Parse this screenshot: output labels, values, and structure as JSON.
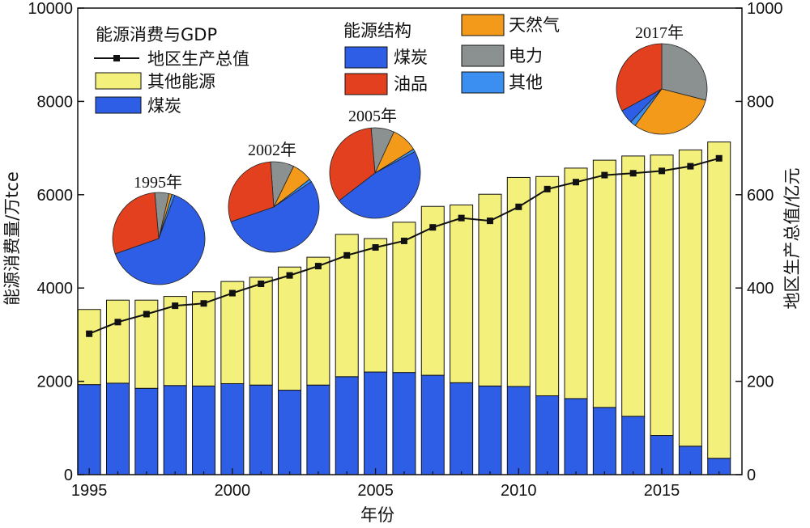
{
  "chart_data": {
    "type": "bar",
    "stacked": true,
    "x": [
      1995,
      1996,
      1997,
      1998,
      1999,
      2000,
      2001,
      2002,
      2003,
      2004,
      2005,
      2006,
      2007,
      2008,
      2009,
      2010,
      2011,
      2012,
      2013,
      2014,
      2015,
      2016,
      2017
    ],
    "series": [
      {
        "name": "煤炭",
        "color": "#2f5ee6",
        "values": [
          1930,
          1960,
          1850,
          1910,
          1900,
          1950,
          1920,
          1810,
          1920,
          2100,
          2200,
          2190,
          2130,
          1970,
          1900,
          1890,
          1690,
          1630,
          1440,
          1250,
          840,
          610,
          350
        ]
      },
      {
        "name": "其他能源",
        "color": "#f3f07c",
        "values": [
          1610,
          1780,
          1890,
          1910,
          2020,
          2190,
          2310,
          2640,
          2740,
          3050,
          2860,
          3220,
          3620,
          3810,
          4110,
          4480,
          4700,
          4940,
          5300,
          5580,
          6010,
          6350,
          6780
        ]
      },
      {
        "name": "地区生产总值",
        "axis": "right",
        "type": "line",
        "color": "#111111",
        "values": [
          302,
          327,
          344,
          362,
          367,
          389,
          409,
          427,
          447,
          470,
          487,
          501,
          530,
          550,
          544,
          574,
          612,
          627,
          642,
          646,
          651,
          661,
          678
        ]
      }
    ],
    "xlabel": "年份",
    "ylabel_left": "能源消费量/万tce",
    "ylabel_right": "地区生产总值/亿元",
    "ylim_left": [
      0,
      10000
    ],
    "ylim_right": [
      0,
      1000
    ],
    "xlim": [
      1994.6,
      2017.8
    ],
    "yticks_left": [
      "0",
      "2000",
      "4000",
      "6000",
      "8000",
      "10000"
    ],
    "yticks_right": [
      "0",
      "200",
      "400",
      "600",
      "800",
      "1000"
    ],
    "xticks": [
      "1995",
      "2000",
      "2005",
      "2010",
      "2015"
    ],
    "grid": false,
    "legend1": {
      "title": "能源消费与GDP",
      "items": [
        "地区生产总值",
        "其他能源",
        "煤炭"
      ]
    },
    "legend2": {
      "title": "能源结构",
      "items": [
        {
          "name": "煤炭",
          "color": "#2f5ee6"
        },
        {
          "name": "油品",
          "color": "#e2401f"
        },
        {
          "name": "天然气",
          "color": "#f39a1b"
        },
        {
          "name": "电力",
          "color": "#8a9190"
        },
        {
          "name": "其他",
          "color": "#3a8ff0"
        }
      ]
    },
    "pies": [
      {
        "title": "1995年",
        "shares": {
          "煤炭": 64,
          "油品": 29,
          "天然气": 1,
          "电力": 5,
          "其他": 1
        }
      },
      {
        "title": "2002年",
        "shares": {
          "煤炭": 52,
          "油品": 28,
          "天然气": 7,
          "电力": 8,
          "其他": 1
        }
      },
      {
        "title": "2005年",
        "shares": {
          "煤炭": 46,
          "油品": 33,
          "天然气": 9,
          "电力": 8,
          "其他": 1
        }
      },
      {
        "title": "2017年",
        "shares": {
          "煤炭": 5,
          "油品": 33,
          "天然气": 31,
          "电力": 29,
          "其他": 2
        }
      }
    ]
  }
}
